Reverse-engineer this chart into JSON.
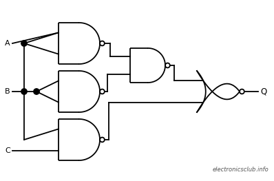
{
  "bg_color": "#ffffff",
  "line_color": "#000000",
  "lw": 1.3,
  "br": 0.013,
  "dr": 0.016,
  "label_A": "A",
  "label_B": "B",
  "label_C": "C",
  "label_Q": "Q",
  "watermark": "electronicsclub.info",
  "figsize": [
    3.98,
    2.63
  ],
  "dpi": 100
}
